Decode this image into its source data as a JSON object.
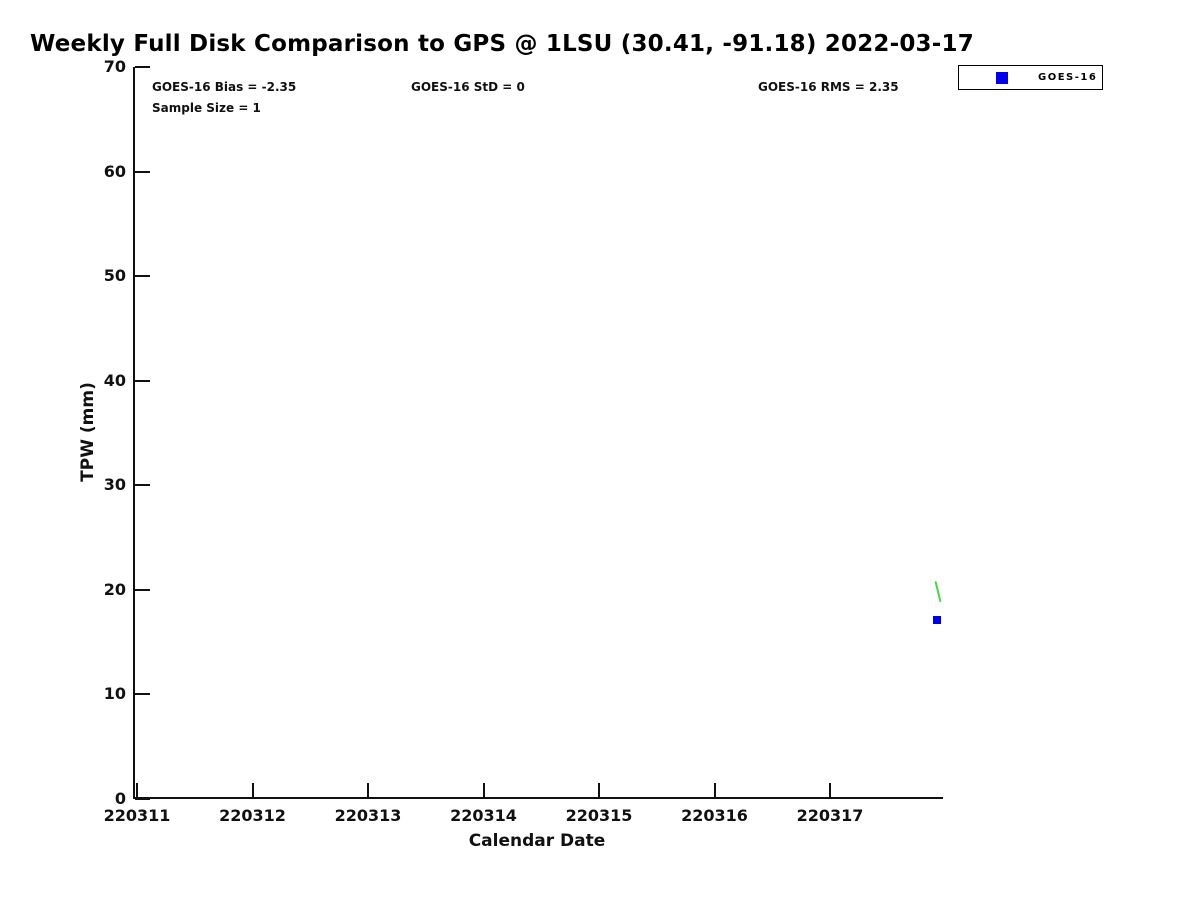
{
  "title": "Weekly Full Disk Comparison to GPS @ 1LSU (30.41, -91.18) 2022-03-17",
  "annotations": {
    "bias": "GOES-16 Bias = -2.35",
    "std": "GOES-16 StD = 0",
    "rms": "GOES-16 RMS = 2.35",
    "sample_size": "Sample Size = 1"
  },
  "legend": {
    "position": "top-right",
    "entries": [
      {
        "label": "GOES-16",
        "marker": "square",
        "marker_color": "#0000ee"
      }
    ]
  },
  "chart_data": {
    "type": "scatter",
    "title": "Weekly Full Disk Comparison to GPS @ 1LSU (30.41, -91.18) 2022-03-17",
    "xlabel": "Calendar Date",
    "ylabel": "TPW (mm)",
    "ylim": [
      0,
      70
    ],
    "yticks": [
      0,
      10,
      20,
      30,
      40,
      50,
      60,
      70
    ],
    "x_unit": "days since 220311",
    "xlim_days": [
      -0.03,
      6.98
    ],
    "xticks": [
      {
        "day": 0,
        "label": "220311"
      },
      {
        "day": 1,
        "label": "220312"
      },
      {
        "day": 2,
        "label": "220313"
      },
      {
        "day": 3,
        "label": "220314"
      },
      {
        "day": 4,
        "label": "220315"
      },
      {
        "day": 5,
        "label": "220316"
      },
      {
        "day": 6,
        "label": "220317"
      }
    ],
    "grid": false,
    "series": [
      {
        "name": "GOES-16",
        "style": "square-marker",
        "color": "#0000ee",
        "points": [
          {
            "x_day": 6.93,
            "tpw_mm": 17.1
          }
        ]
      },
      {
        "name": "gps-trace",
        "style": "line",
        "color": "#2fd32f",
        "points": [
          {
            "x_day": 6.915,
            "tpw_mm": 20.7
          },
          {
            "x_day": 6.955,
            "tpw_mm": 18.9
          }
        ]
      }
    ]
  }
}
